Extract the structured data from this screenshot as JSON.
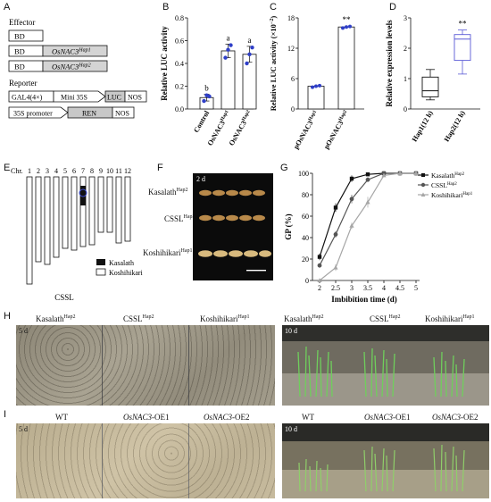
{
  "panels": {
    "A": {
      "letter": "A",
      "effector_label": "Effector",
      "reporter_label": "Reporter",
      "bd": "BD",
      "hap1": "OsNAC3",
      "hap1_sup": "Hap1",
      "hap2": "OsNAC3",
      "hap2_sup": "Hap2",
      "gal4": "GAL4(4×)",
      "mini35s": "Mini 35S",
      "luc": "LUC",
      "nos": "NOS",
      "promoter35s": "35S promoter",
      "ren": "REN"
    },
    "B": {
      "letter": "B",
      "ylabel": "Relative LUC activity"
    },
    "C": {
      "letter": "C",
      "ylabel": "Relative LUC activity (×10",
      "ylabel_sup": "−2",
      "ylabel_end": ")"
    },
    "D": {
      "letter": "D",
      "ylabel": "Relative expression levels"
    },
    "E": {
      "letter": "E",
      "chr_label": "Chr.",
      "chromosomes": [
        "1",
        "2",
        "3",
        "4",
        "5",
        "6",
        "7",
        "8",
        "9",
        "10",
        "11",
        "12"
      ],
      "legend_kasalath": "Kasalath",
      "legend_koshihikari": "Koshihikari",
      "caption": "CSSL"
    },
    "F": {
      "letter": "F",
      "time": "2 d",
      "rows": [
        {
          "name": "Kasalath",
          "sup": "Hap2"
        },
        {
          "name": "CSSL",
          "sup": "Hap2"
        },
        {
          "name": "Koshihikari",
          "sup": "Hap1"
        }
      ]
    },
    "G": {
      "letter": "G"
    },
    "H": {
      "letter": "H",
      "labels": [
        {
          "name": "Kasalath",
          "sup": "Hap2"
        },
        {
          "name": "CSSL",
          "sup": "Hap2"
        },
        {
          "name": "Koshihikari",
          "sup": "Hap1"
        }
      ],
      "left_time": "5 d",
      "right_time": "10 d"
    },
    "I": {
      "letter": "I",
      "labels": [
        {
          "name": "WT",
          "suffix": ""
        },
        {
          "name": "OsNAC3",
          "suffix": "-OE1"
        },
        {
          "name": "OsNAC3",
          "suffix": "-OE2"
        }
      ],
      "left_time": "5 d",
      "right_time": "10 d"
    }
  },
  "chart_data": [
    {
      "id": "B",
      "type": "bar",
      "categories": [
        "Control",
        "OsNAC3",
        "OsNAC3"
      ],
      "category_sups": [
        "",
        "Hap1",
        "Hap2"
      ],
      "values": [
        0.1,
        0.51,
        0.48
      ],
      "errors": [
        0.03,
        0.06,
        0.07
      ],
      "points": [
        [
          0.07,
          0.12,
          0.11
        ],
        [
          0.45,
          0.52,
          0.56
        ],
        [
          0.4,
          0.48,
          0.54
        ]
      ],
      "letters": [
        "b",
        "a",
        "a"
      ],
      "ylabel": "Relative LUC activity",
      "ylim": [
        0,
        0.8
      ],
      "yticks": [
        "0.0",
        "0.2",
        "0.4",
        "0.6",
        "0.8"
      ]
    },
    {
      "id": "C",
      "type": "bar",
      "categories": [
        "pOsNAC3",
        "pOsNAC3"
      ],
      "category_sups": [
        "Hap1",
        "Hap2"
      ],
      "values": [
        4.5,
        16.2
      ],
      "errors": [
        0.2,
        0.2
      ],
      "points": [
        [
          4.3,
          4.5,
          4.6
        ],
        [
          16.0,
          16.2,
          16.3
        ]
      ],
      "letters": [
        "",
        "**"
      ],
      "ylabel": "Relative LUC activity (×10−2)",
      "ylim": [
        0,
        18
      ],
      "yticks": [
        "0",
        "6",
        "12",
        "18"
      ]
    },
    {
      "id": "D",
      "type": "box",
      "categories": [
        "Hap1(12 h)",
        "Hap2(12 h)"
      ],
      "boxes": [
        {
          "min": 0.3,
          "q1": 0.4,
          "median": 0.6,
          "q3": 1.05,
          "max": 1.3,
          "color": "#111111"
        },
        {
          "min": 1.15,
          "q1": 1.6,
          "median": 2.3,
          "q3": 2.45,
          "max": 2.6,
          "color": "#5a5ad6"
        }
      ],
      "letters": [
        "",
        "**"
      ],
      "ylabel": "Relative expression levels",
      "ylim": [
        0,
        3
      ],
      "yticks": [
        "0",
        "1",
        "2",
        "3"
      ]
    },
    {
      "id": "G",
      "type": "line",
      "x": [
        2,
        2.5,
        3,
        3.5,
        4,
        4.5,
        5
      ],
      "xticks": [
        "2",
        "2.5",
        "3",
        "3.5",
        "4",
        "4.5",
        "5"
      ],
      "series": [
        {
          "name": "Kasalath",
          "sup": "Hap2",
          "values": [
            22,
            68,
            95,
            99,
            100,
            100,
            100
          ],
          "errors": [
            3,
            4,
            3,
            1,
            0,
            0,
            0
          ],
          "color": "#111111",
          "marker": "square"
        },
        {
          "name": "CSSL",
          "sup": "Hap2",
          "values": [
            14,
            43,
            76,
            94,
            100,
            100,
            100
          ],
          "errors": [
            2,
            3,
            4,
            2,
            0,
            0,
            0
          ],
          "color": "#555555",
          "marker": "circle"
        },
        {
          "name": "Koshihikari",
          "sup": "Hap1",
          "values": [
            0,
            12,
            51,
            73,
            98,
            100,
            100
          ],
          "errors": [
            1,
            3,
            3,
            5,
            1,
            0,
            0
          ],
          "color": "#a6a6a6",
          "marker": "triangle"
        }
      ],
      "xlabel": "Imbibition time (d)",
      "ylabel": "GP (%)",
      "ylim": [
        0,
        100
      ],
      "yticks": [
        "0",
        "20",
        "40",
        "60",
        "80",
        "100"
      ]
    }
  ]
}
